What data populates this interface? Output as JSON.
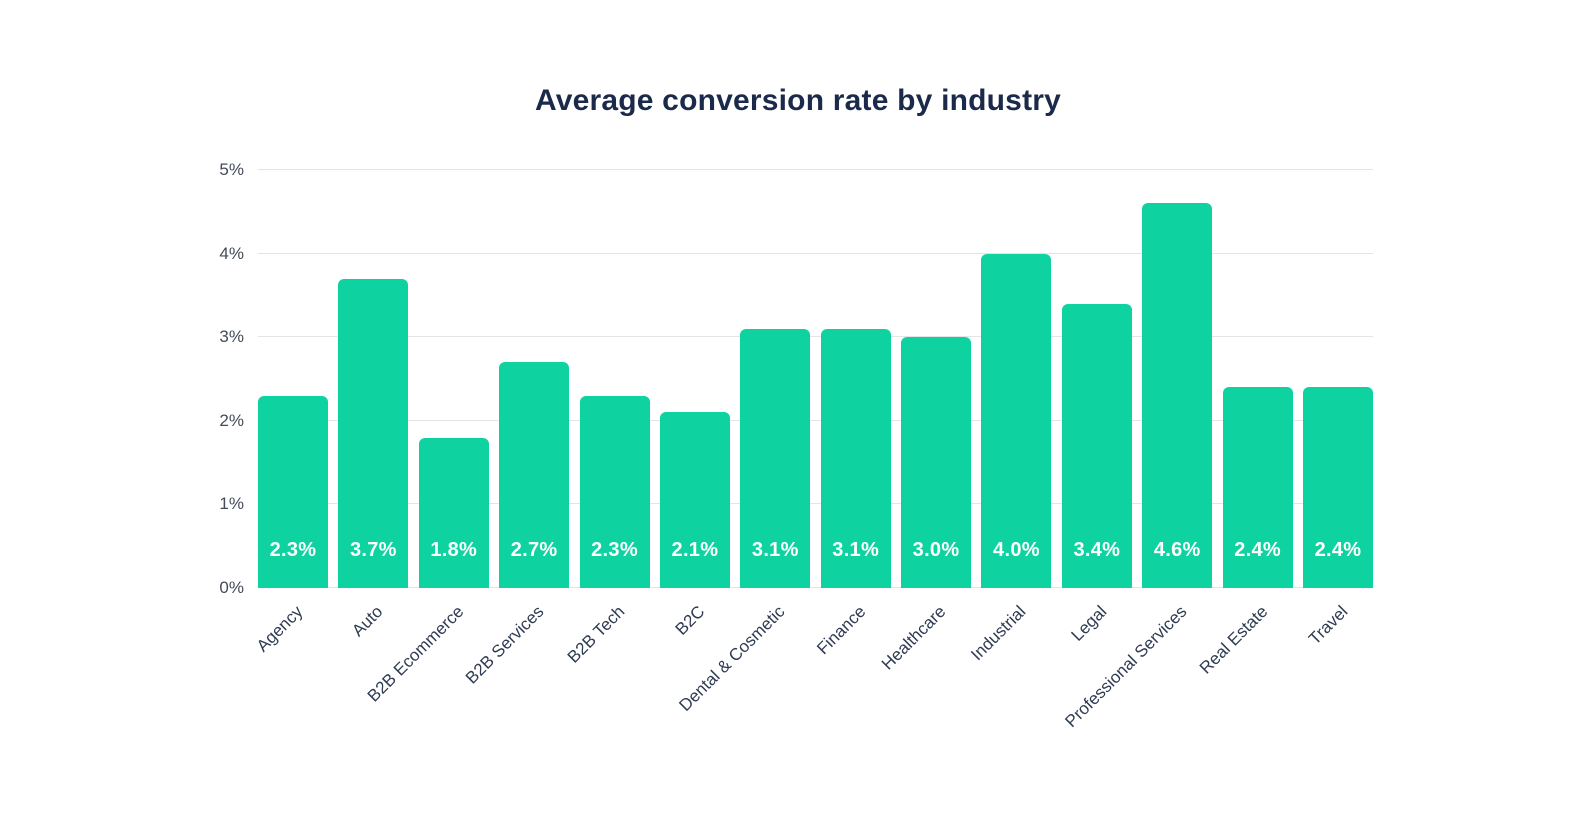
{
  "chart_data": {
    "type": "bar",
    "title": "Average conversion rate by industry",
    "categories": [
      "Agency",
      "Auto",
      "B2B Ecommerce",
      "B2B Services",
      "B2B Tech",
      "B2C",
      "Dental & Cosmetic",
      "Finance",
      "Healthcare",
      "Industrial",
      "Legal",
      "Professional Services",
      "Real Estate",
      "Travel"
    ],
    "values": [
      2.3,
      3.7,
      1.8,
      2.7,
      2.3,
      2.1,
      3.1,
      3.1,
      3.0,
      4.0,
      3.4,
      4.6,
      2.4,
      2.4
    ],
    "bar_labels": [
      "2.3%",
      "3.7%",
      "1.8%",
      "2.7%",
      "2.3%",
      "2.1%",
      "3.1%",
      "3.1%",
      "3.0%",
      "4.0%",
      "3.4%",
      "4.6%",
      "2.4%",
      "2.4%"
    ],
    "xlabel": "",
    "ylabel": "",
    "y_axis": {
      "min": 0,
      "max": 5,
      "ticks": [
        "0%",
        "1%",
        "2%",
        "3%",
        "4%",
        "5%"
      ]
    },
    "grid": true,
    "legend": "none",
    "colors": {
      "bar": "#0ed3a1",
      "bar_label": "#ffffff",
      "title": "#1b2a4a",
      "y_tick": "#434b59",
      "x_tick": "#2f3b52",
      "gridline": "#e4e4e6",
      "background": "#ffffff"
    }
  }
}
